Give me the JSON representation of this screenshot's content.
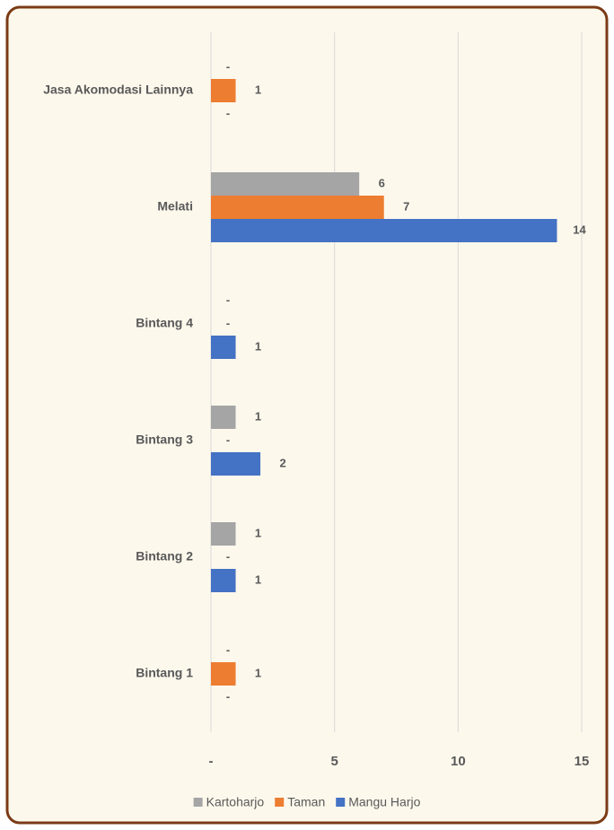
{
  "chart_data": {
    "type": "bar",
    "orientation": "horizontal",
    "categories": [
      "Jasa Akomodasi Lainnya",
      "Melati",
      "Bintang 4",
      "Bintang 3",
      "Bintang 2",
      "Bintang 1"
    ],
    "series": [
      {
        "name": "Kartoharjo",
        "color": "#a5a5a5",
        "values": [
          0,
          6,
          0,
          1,
          1,
          0
        ],
        "value_labels": [
          "-",
          "6",
          "-",
          "1",
          "1",
          "-"
        ]
      },
      {
        "name": "Taman",
        "color": "#ed7d31",
        "values": [
          1,
          7,
          0,
          0,
          0,
          1
        ],
        "value_labels": [
          "1",
          "7",
          "-",
          "-",
          "-",
          "1"
        ]
      },
      {
        "name": "Mangu Harjo",
        "color": "#4472c4",
        "values": [
          0,
          14,
          1,
          2,
          1,
          0
        ],
        "value_labels": [
          "-",
          "14",
          "1",
          "2",
          "1",
          "-"
        ]
      }
    ],
    "xlim": [
      0,
      15
    ],
    "xticks": [
      {
        "value": 0,
        "label": "-"
      },
      5,
      10,
      15
    ],
    "grid": true,
    "legend": "bottom"
  }
}
